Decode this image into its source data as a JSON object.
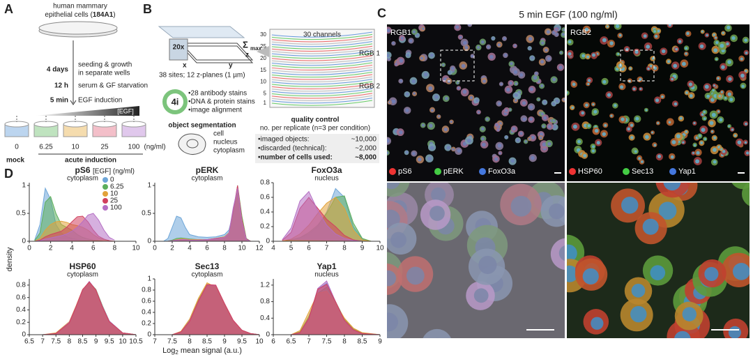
{
  "panel_a": {
    "label": "A",
    "line1": "human mammary",
    "line2_pre": "epithelial cells (",
    "line2_bold": "184A1",
    "line2_post": ")",
    "step1_time": "4 days",
    "step1_a": "seeding & growth",
    "step1_b": "in separate wells",
    "step2_time": "12 h",
    "step2_a": "serum & GF starvation",
    "step3_time": "5 min",
    "step3_a": "EGF induction",
    "wedge": "[EGF]",
    "doses": [
      "0",
      "6.25",
      "10",
      "25",
      "100"
    ],
    "unit": "(ng/ml)",
    "mock": "mock",
    "acute": "acute induction"
  },
  "panel_b": {
    "label": "B",
    "objective": "20x",
    "x": "x",
    "y": "y",
    "z": "z",
    "sigma": "Σ",
    "max": "max",
    "sites": "38 sites; 12 z-planes (1 µm)",
    "cycle": "4i",
    "bullets": [
      "•28 antibody stains",
      "•DNA & protein stains",
      "•image alignment"
    ],
    "seg_title": "object segmentation",
    "seg_labels": [
      "cell",
      "nucleus",
      "cytoplasm"
    ],
    "channels": "30 channels",
    "channel_ticks": [
      30,
      25,
      20,
      15,
      10,
      5,
      1
    ],
    "rgb1": "RGB 1",
    "rgb2": "RGB 2",
    "qc_title": "quality control",
    "qc_sub": "no. per replicate (n=3 per condition)",
    "qc_rows": [
      [
        "•imaged objects:",
        "~10,000"
      ],
      [
        "•discarded (technical):",
        "~2,000"
      ],
      [
        "•number of cells used:",
        "~8,000"
      ]
    ]
  },
  "panel_c": {
    "label": "C",
    "title": "5 min EGF (100 ng/ml)",
    "rgb1": "RGB1",
    "rgb2": "RGB2",
    "legend1": [
      "pS6",
      "pERK",
      "FoxO3a"
    ],
    "legend2": [
      "HSP60",
      "Sec13",
      "Yap1"
    ]
  },
  "panel_d": {
    "label": "D",
    "ylabel": "density",
    "xlabel_prefix": "Log",
    "xlabel_sub": "2",
    "xlabel_rest": "mean signal (a.u.)"
  },
  "chart_data": [
    {
      "type": "density",
      "title": "pS6",
      "subtitle": "cytoplasm",
      "legend_title": "[EGF] (ng/ml)",
      "x": [
        0.5,
        1,
        1.5,
        2,
        2.5,
        3,
        3.5,
        4,
        4.5,
        5,
        5.5,
        6,
        6.5,
        7,
        7.5,
        8
      ],
      "series": [
        {
          "name": "0",
          "color": "#6ea6d8",
          "values": [
            0.02,
            0.3,
            0.95,
            0.75,
            0.3,
            0.15,
            0.08,
            0.05,
            0.03,
            0.02,
            0.01,
            0.01,
            0,
            0,
            0,
            0
          ]
        },
        {
          "name": "6.25",
          "color": "#5cae5c",
          "values": [
            0.01,
            0.15,
            0.7,
            0.8,
            0.5,
            0.3,
            0.25,
            0.2,
            0.12,
            0.07,
            0.04,
            0.02,
            0.01,
            0,
            0,
            0
          ]
        },
        {
          "name": "10",
          "color": "#e2a23a",
          "values": [
            0,
            0.05,
            0.2,
            0.3,
            0.35,
            0.36,
            0.34,
            0.3,
            0.28,
            0.25,
            0.2,
            0.12,
            0.06,
            0.03,
            0.01,
            0
          ]
        },
        {
          "name": "25",
          "color": "#d1405e",
          "values": [
            0,
            0.02,
            0.08,
            0.12,
            0.15,
            0.18,
            0.25,
            0.35,
            0.44,
            0.45,
            0.35,
            0.2,
            0.09,
            0.04,
            0.01,
            0
          ]
        },
        {
          "name": "100",
          "color": "#b46fc4",
          "values": [
            0,
            0.01,
            0.04,
            0.06,
            0.08,
            0.1,
            0.13,
            0.18,
            0.25,
            0.35,
            0.47,
            0.5,
            0.38,
            0.2,
            0.07,
            0.02
          ]
        }
      ],
      "xlim": [
        0,
        10
      ],
      "xticks": [
        0,
        2,
        4,
        6,
        8,
        10
      ],
      "ylim": [
        0,
        1.05
      ],
      "yticks": [
        0,
        0.5,
        1
      ]
    },
    {
      "type": "density",
      "title": "pERK",
      "subtitle": "cytoplasm",
      "x": [
        1,
        1.5,
        2,
        2.5,
        3,
        3.5,
        4,
        5,
        6,
        7,
        8,
        8.5,
        9,
        9.5,
        10,
        10.5,
        11
      ],
      "series": [
        {
          "color": "#6ea6d8",
          "values": [
            0,
            0.05,
            0.25,
            0.45,
            0.42,
            0.25,
            0.12,
            0.08,
            0.07,
            0.08,
            0.12,
            0.2,
            0.5,
            0.95,
            0.4,
            0.05,
            0
          ]
        },
        {
          "color": "#5cae5c",
          "values": [
            0,
            0,
            0.02,
            0.05,
            0.06,
            0.05,
            0.04,
            0.03,
            0.03,
            0.05,
            0.08,
            0.15,
            0.5,
            1.0,
            0.45,
            0.05,
            0
          ]
        },
        {
          "color": "#e2a23a",
          "values": [
            0,
            0,
            0.01,
            0.03,
            0.04,
            0.04,
            0.03,
            0.03,
            0.03,
            0.05,
            0.08,
            0.15,
            0.55,
            0.98,
            0.4,
            0.04,
            0
          ]
        },
        {
          "color": "#d1405e",
          "values": [
            0,
            0,
            0.01,
            0.02,
            0.03,
            0.03,
            0.02,
            0.02,
            0.03,
            0.05,
            0.07,
            0.14,
            0.55,
            1.0,
            0.38,
            0.04,
            0
          ]
        },
        {
          "color": "#b46fc4",
          "values": [
            0,
            0,
            0.01,
            0.02,
            0.03,
            0.03,
            0.02,
            0.02,
            0.03,
            0.04,
            0.07,
            0.14,
            0.6,
            0.95,
            0.35,
            0.03,
            0
          ]
        }
      ],
      "xlim": [
        0,
        12
      ],
      "xticks": [
        0,
        2,
        4,
        6,
        8,
        10,
        12
      ],
      "ylim": [
        0,
        1.05
      ],
      "yticks": [
        0,
        0.5,
        1
      ]
    },
    {
      "type": "density",
      "title": "FoxO3a",
      "subtitle": "nucleus",
      "x": [
        4.5,
        5,
        5.5,
        6,
        6.5,
        7,
        7.5,
        8,
        8.5,
        9,
        9.5
      ],
      "series": [
        {
          "color": "#6ea6d8",
          "values": [
            0,
            0.02,
            0.05,
            0.1,
            0.2,
            0.4,
            0.72,
            0.6,
            0.2,
            0.03,
            0
          ]
        },
        {
          "color": "#5cae5c",
          "values": [
            0,
            0.02,
            0.05,
            0.12,
            0.22,
            0.38,
            0.6,
            0.62,
            0.25,
            0.04,
            0
          ]
        },
        {
          "color": "#e2a23a",
          "values": [
            0,
            0.03,
            0.1,
            0.22,
            0.38,
            0.52,
            0.6,
            0.45,
            0.15,
            0.02,
            0
          ]
        },
        {
          "color": "#d1405e",
          "values": [
            0.01,
            0.12,
            0.45,
            0.6,
            0.45,
            0.3,
            0.2,
            0.08,
            0.02,
            0,
            0
          ]
        },
        {
          "color": "#b46fc4",
          "values": [
            0.02,
            0.18,
            0.55,
            0.68,
            0.42,
            0.22,
            0.1,
            0.04,
            0.01,
            0,
            0
          ]
        }
      ],
      "xlim": [
        4,
        10
      ],
      "xticks": [
        4,
        5,
        6,
        7,
        8,
        9,
        10
      ],
      "ylim": [
        0,
        0.8
      ],
      "yticks": [
        0,
        0.2,
        0.4,
        0.6,
        0.8
      ]
    },
    {
      "type": "density",
      "title": "HSP60",
      "subtitle": "cytoplasm",
      "x": [
        7,
        7.5,
        8,
        8.25,
        8.5,
        8.75,
        9,
        9.25,
        9.5,
        10,
        10.5
      ],
      "series": [
        {
          "color": "#6ea6d8",
          "values": [
            0,
            0.02,
            0.2,
            0.45,
            0.72,
            0.84,
            0.72,
            0.45,
            0.22,
            0.03,
            0
          ]
        },
        {
          "color": "#5cae5c",
          "values": [
            0,
            0.02,
            0.19,
            0.44,
            0.71,
            0.85,
            0.73,
            0.46,
            0.22,
            0.03,
            0
          ]
        },
        {
          "color": "#e2a23a",
          "values": [
            0,
            0.03,
            0.21,
            0.46,
            0.73,
            0.84,
            0.71,
            0.44,
            0.21,
            0.03,
            0
          ]
        },
        {
          "color": "#b46fc4",
          "values": [
            0,
            0.02,
            0.2,
            0.45,
            0.72,
            0.86,
            0.72,
            0.45,
            0.22,
            0.03,
            0
          ]
        },
        {
          "color": "#d1405e",
          "values": [
            0,
            0.02,
            0.19,
            0.45,
            0.73,
            0.85,
            0.72,
            0.44,
            0.21,
            0.03,
            0
          ]
        }
      ],
      "xlim": [
        6.5,
        10.5
      ],
      "xticks": [
        6.5,
        7,
        7.5,
        8,
        8.5,
        9,
        9.5,
        10,
        10.5
      ],
      "ylim": [
        0,
        0.9
      ],
      "yticks": [
        0,
        0.2,
        0.4,
        0.6,
        0.8
      ]
    },
    {
      "type": "density",
      "title": "Sec13",
      "subtitle": "cytoplasm",
      "x": [
        7.5,
        7.75,
        8,
        8.25,
        8.5,
        8.75,
        9,
        9.25,
        9.5,
        9.75,
        10
      ],
      "series": [
        {
          "color": "#6ea6d8",
          "values": [
            0,
            0.05,
            0.25,
            0.6,
            0.9,
            0.88,
            0.55,
            0.25,
            0.08,
            0.02,
            0
          ]
        },
        {
          "color": "#5cae5c",
          "values": [
            0,
            0.05,
            0.26,
            0.62,
            0.9,
            0.86,
            0.54,
            0.24,
            0.08,
            0.02,
            0
          ]
        },
        {
          "color": "#e2a23a",
          "values": [
            0,
            0.06,
            0.28,
            0.65,
            0.93,
            0.85,
            0.52,
            0.23,
            0.07,
            0.02,
            0
          ]
        },
        {
          "color": "#b46fc4",
          "values": [
            0,
            0.05,
            0.25,
            0.6,
            0.88,
            0.88,
            0.56,
            0.25,
            0.08,
            0.02,
            0
          ]
        },
        {
          "color": "#d1405e",
          "values": [
            0,
            0.05,
            0.24,
            0.6,
            0.9,
            0.89,
            0.56,
            0.26,
            0.08,
            0.02,
            0
          ]
        }
      ],
      "xlim": [
        7,
        10
      ],
      "xticks": [
        7,
        7.5,
        8,
        8.5,
        9,
        9.5,
        10
      ],
      "ylim": [
        0,
        1
      ],
      "yticks": [
        0,
        0.2,
        0.4,
        0.6,
        0.8,
        1
      ]
    },
    {
      "type": "density",
      "title": "Yap1",
      "subtitle": "nucleus",
      "x": [
        6.5,
        6.75,
        7,
        7.25,
        7.5,
        7.75,
        8,
        8.25,
        8.5,
        9
      ],
      "series": [
        {
          "color": "#6ea6d8",
          "values": [
            0,
            0.05,
            0.4,
            1.1,
            1.25,
            0.8,
            0.35,
            0.12,
            0.03,
            0
          ]
        },
        {
          "color": "#5cae5c",
          "values": [
            0,
            0.07,
            0.45,
            1.0,
            1.15,
            0.8,
            0.38,
            0.14,
            0.04,
            0
          ]
        },
        {
          "color": "#e2a23a",
          "values": [
            0,
            0.1,
            0.55,
            1.0,
            1.05,
            0.75,
            0.4,
            0.16,
            0.05,
            0
          ]
        },
        {
          "color": "#b46fc4",
          "values": [
            0,
            0.05,
            0.38,
            1.12,
            1.3,
            0.8,
            0.34,
            0.11,
            0.03,
            0
          ]
        },
        {
          "color": "#d1405e",
          "values": [
            0,
            0.05,
            0.4,
            1.1,
            1.22,
            0.8,
            0.35,
            0.12,
            0.03,
            0
          ]
        }
      ],
      "xlim": [
        6,
        9
      ],
      "xticks": [
        6,
        6.5,
        7,
        7.5,
        8,
        8.5,
        9
      ],
      "ylim": [
        0,
        1.35
      ],
      "yticks": [
        0,
        0.4,
        0.8,
        1.2
      ]
    }
  ]
}
